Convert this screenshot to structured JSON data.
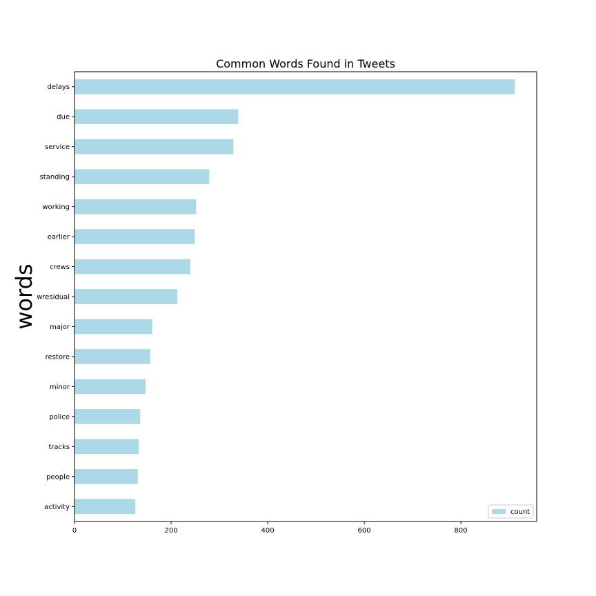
{
  "chart_data": {
    "type": "bar",
    "orientation": "horizontal",
    "title": "Common Words Found in Tweets",
    "xlabel": "",
    "ylabel": "words",
    "categories": [
      "delays",
      "due",
      "service",
      "standing",
      "working",
      "earlier",
      "crews",
      "wresidual",
      "major",
      "restore",
      "minor",
      "police",
      "tracks",
      "people",
      "activity"
    ],
    "series": [
      {
        "name": "count",
        "values": [
          912,
          339,
          329,
          279,
          252,
          249,
          240,
          213,
          161,
          157,
          147,
          136,
          133,
          131,
          126
        ],
        "color": "#add8e6"
      }
    ],
    "xlim": [
      0,
      957
    ],
    "xticks": [
      0,
      200,
      400,
      600,
      800
    ],
    "grid": false,
    "legend_position": "bottom-right"
  }
}
